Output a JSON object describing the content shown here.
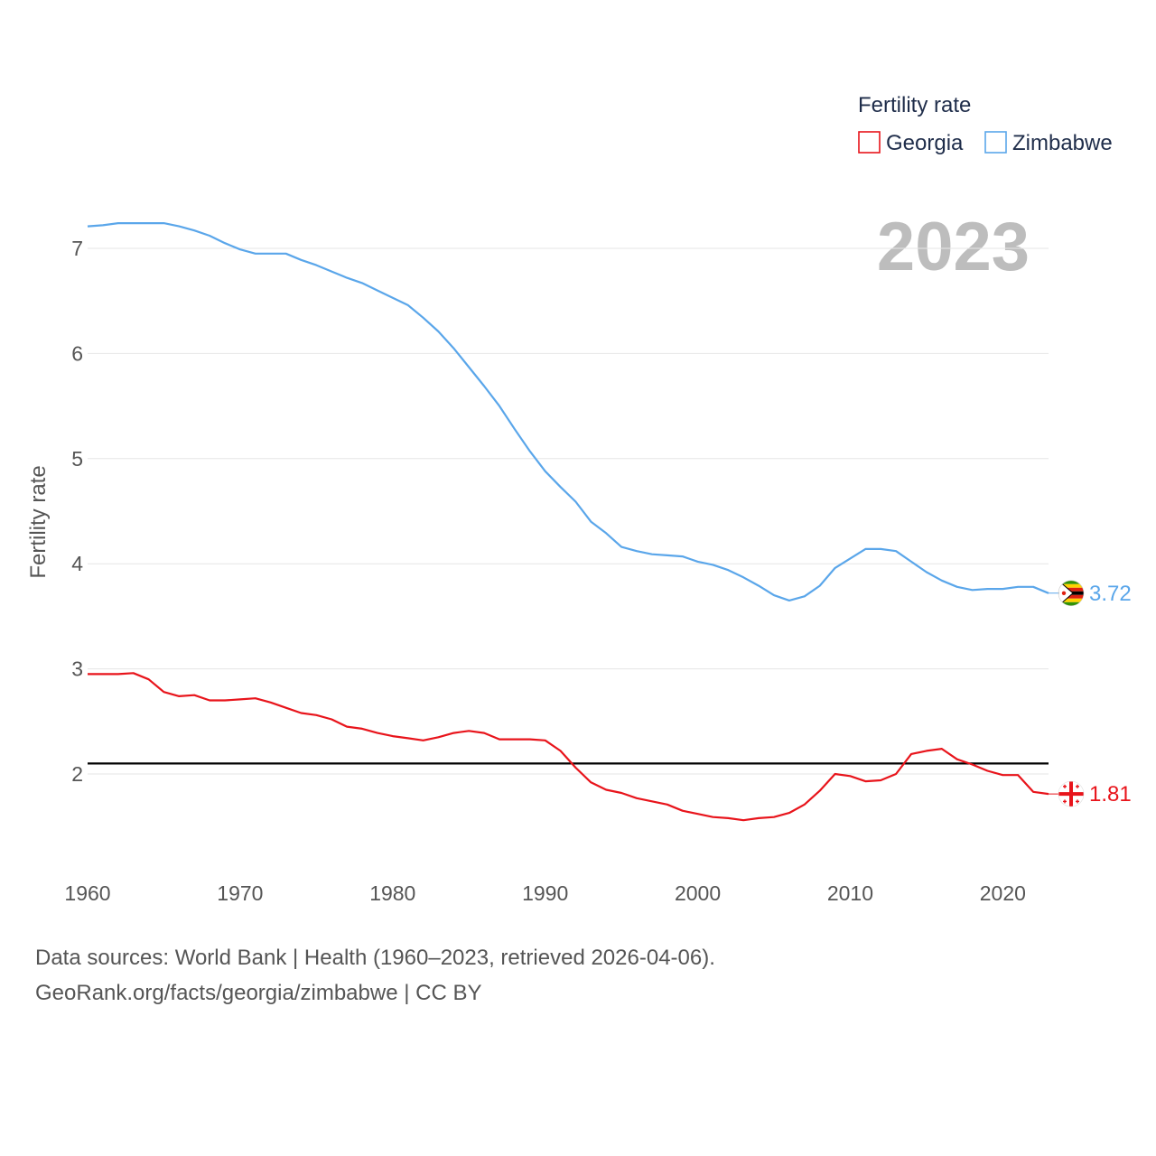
{
  "colors": {
    "georgia": "#e8141b",
    "zimbabwe": "#5aa6ea",
    "reference_line": "#000000",
    "grid": "#e6e6e6",
    "axis_text": "#555555",
    "legend_text": "#1f2d4a",
    "watermark": "#bdbdbd"
  },
  "legend": {
    "title": "Fertility rate",
    "items": [
      {
        "label": "Georgia",
        "color": "#e8141b"
      },
      {
        "label": "Zimbabwe",
        "color": "#5aa6ea"
      }
    ]
  },
  "year_watermark": "2023",
  "end_labels": {
    "georgia": "1.81",
    "zimbabwe": "3.72"
  },
  "flags": {
    "georgia": "georgia-flag-icon",
    "zimbabwe": "zimbabwe-flag-icon"
  },
  "footer": {
    "line1": "Data sources: World Bank | Health (1960–2023, retrieved 2026-04-06).",
    "line2": "GeoRank.org/facts/georgia/zimbabwe | CC BY"
  },
  "chart_data": {
    "type": "line",
    "title": "",
    "xlabel": "",
    "ylabel": "Fertility rate",
    "xlim": [
      1960,
      2023
    ],
    "ylim": [
      1.1,
      7.6
    ],
    "x_ticks": [
      1960,
      1970,
      1980,
      1990,
      2000,
      2010,
      2020
    ],
    "y_ticks": [
      2,
      3,
      4,
      5,
      6,
      7
    ],
    "grid": true,
    "legend_position": "top-right",
    "reference_line": {
      "y": 2.1
    },
    "x": [
      1960,
      1961,
      1962,
      1963,
      1964,
      1965,
      1966,
      1967,
      1968,
      1969,
      1970,
      1971,
      1972,
      1973,
      1974,
      1975,
      1976,
      1977,
      1978,
      1979,
      1980,
      1981,
      1982,
      1983,
      1984,
      1985,
      1986,
      1987,
      1988,
      1989,
      1990,
      1991,
      1992,
      1993,
      1994,
      1995,
      1996,
      1997,
      1998,
      1999,
      2000,
      2001,
      2002,
      2003,
      2004,
      2005,
      2006,
      2007,
      2008,
      2009,
      2010,
      2011,
      2012,
      2013,
      2014,
      2015,
      2016,
      2017,
      2018,
      2019,
      2020,
      2021,
      2022,
      2023
    ],
    "series": [
      {
        "name": "Georgia",
        "values": [
          2.95,
          2.95,
          2.95,
          2.96,
          2.9,
          2.78,
          2.74,
          2.75,
          2.7,
          2.7,
          2.71,
          2.72,
          2.68,
          2.63,
          2.58,
          2.56,
          2.52,
          2.45,
          2.43,
          2.39,
          2.36,
          2.34,
          2.32,
          2.35,
          2.39,
          2.41,
          2.39,
          2.33,
          2.33,
          2.33,
          2.32,
          2.22,
          2.06,
          1.92,
          1.85,
          1.82,
          1.77,
          1.74,
          1.71,
          1.65,
          1.62,
          1.59,
          1.58,
          1.56,
          1.58,
          1.59,
          1.63,
          1.71,
          1.84,
          2.0,
          1.98,
          1.93,
          1.94,
          2.0,
          2.19,
          2.22,
          2.24,
          2.14,
          2.09,
          2.03,
          1.99,
          1.99,
          1.83,
          1.81
        ]
      },
      {
        "name": "Zimbabwe",
        "values": [
          7.21,
          7.22,
          7.24,
          7.24,
          7.24,
          7.24,
          7.21,
          7.17,
          7.12,
          7.05,
          6.99,
          6.95,
          6.95,
          6.95,
          6.89,
          6.84,
          6.78,
          6.72,
          6.67,
          6.6,
          6.53,
          6.46,
          6.34,
          6.21,
          6.05,
          5.87,
          5.69,
          5.5,
          5.28,
          5.07,
          4.88,
          4.73,
          4.59,
          4.4,
          4.29,
          4.16,
          4.12,
          4.09,
          4.08,
          4.07,
          4.02,
          3.99,
          3.94,
          3.87,
          3.79,
          3.7,
          3.65,
          3.69,
          3.79,
          3.96,
          4.05,
          4.14,
          4.14,
          4.12,
          4.02,
          3.92,
          3.84,
          3.78,
          3.75,
          3.76,
          3.76,
          3.78,
          3.78,
          3.72
        ]
      }
    ]
  }
}
